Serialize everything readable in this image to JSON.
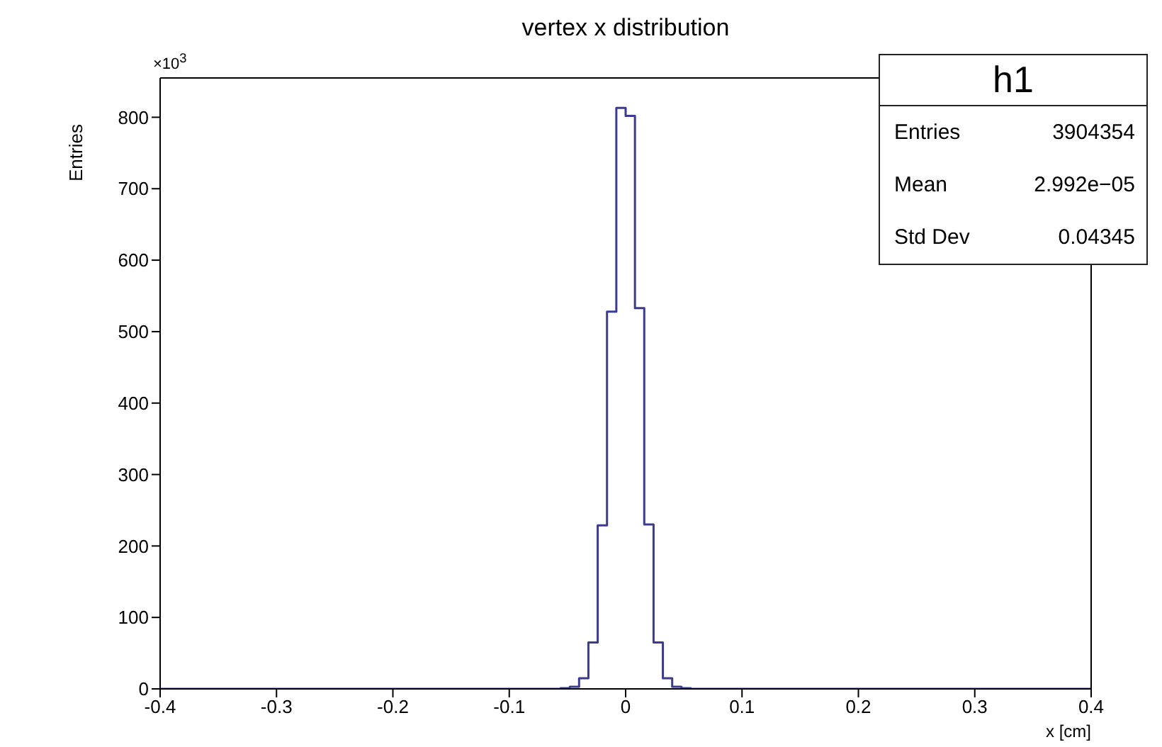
{
  "chart_data": {
    "type": "histogram",
    "title": "vertex x distribution",
    "xlabel": "x [cm]",
    "ylabel": "Entries",
    "annotations": [
      "×10$^{3}$",
      "h1",
      "Entries",
      "3904354",
      "Mean",
      "2.992e−05",
      "Std Dev",
      "0.04345"
    ],
    "bins": [
      -0.4,
      -0.392,
      -0.384,
      -0.376,
      -0.368,
      -0.36,
      -0.352,
      -0.344,
      -0.336,
      -0.328,
      -0.32,
      -0.312,
      -0.304,
      -0.296,
      -0.288,
      -0.28,
      -0.272,
      -0.264,
      -0.256,
      -0.248,
      -0.24,
      -0.232,
      -0.224,
      -0.216,
      -0.208,
      -0.2,
      -0.192,
      -0.184,
      -0.176,
      -0.168,
      -0.16,
      -0.152,
      -0.144,
      -0.136,
      -0.128,
      -0.12,
      -0.112,
      -0.104,
      -0.096,
      -0.088,
      -0.08,
      -0.072,
      -0.064,
      -0.056,
      -0.048,
      -0.04,
      -0.032,
      -0.024,
      -0.016,
      -0.008,
      0,
      0.008,
      0.016,
      0.024,
      0.032,
      0.04,
      0.048,
      0.056,
      0.064,
      0.072,
      0.08,
      0.088,
      0.096,
      0.104,
      0.112,
      0.12,
      0.128,
      0.136,
      0.144,
      0.152,
      0.16,
      0.168,
      0.176,
      0.184,
      0.192,
      0.2,
      0.208,
      0.216,
      0.224,
      0.232,
      0.24,
      0.248,
      0.256,
      0.264,
      0.272,
      0.28,
      0.288,
      0.296,
      0.304,
      0.312,
      0.32,
      0.328,
      0.336,
      0.344,
      0.352,
      0.36,
      0.368,
      0.376,
      0.384,
      0.392,
      0.4
    ],
    "values": [
      0,
      0,
      0,
      0,
      0,
      0,
      0,
      0,
      0,
      0,
      0,
      0,
      0,
      0,
      0,
      0,
      0,
      0,
      0,
      0,
      0,
      0,
      0,
      0,
      0,
      0,
      0,
      0,
      0,
      0,
      0,
      0,
      0,
      0,
      0,
      0,
      0,
      0,
      0,
      0,
      0,
      0,
      0,
      1,
      3,
      15,
      65,
      229,
      528,
      813,
      802,
      533,
      230,
      65,
      15,
      3,
      1,
      0,
      0,
      0,
      0,
      0,
      0,
      0,
      0,
      0,
      0,
      0,
      0,
      0,
      0,
      0,
      0,
      0,
      0,
      0,
      0,
      0,
      0,
      0,
      0,
      0,
      0,
      0,
      0,
      0,
      0,
      0,
      0,
      0,
      0,
      0,
      0,
      0,
      0,
      0,
      0,
      0,
      0,
      0
    ],
    "color": "#3b3b8f",
    "xlim": [
      -0.4,
      0.4
    ],
    "xticks": [
      -0.4,
      -0.3,
      -0.2,
      -0.1,
      0,
      0.1,
      0.2,
      0.3,
      0.4
    ],
    "ylim": [
      0,
      855
    ],
    "yticks": [
      0,
      100,
      200,
      300,
      400,
      500,
      600,
      700,
      800
    ],
    "grid": false
  }
}
